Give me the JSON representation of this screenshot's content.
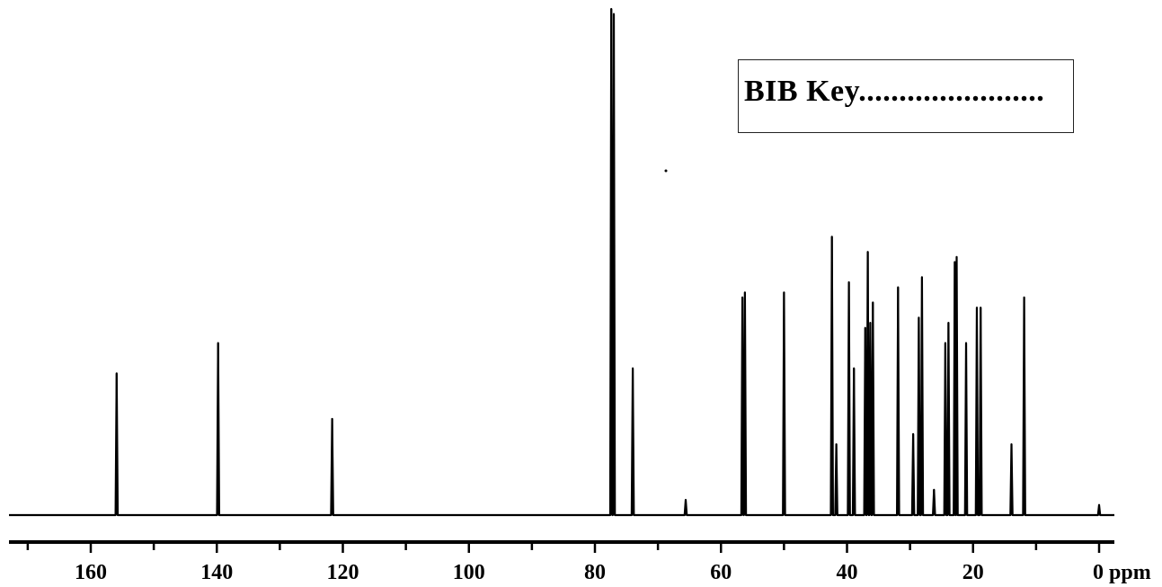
{
  "chart_data": {
    "type": "line",
    "title": "",
    "xlabel": "",
    "ylabel": "",
    "x_unit_label": "ppm",
    "xlim": [
      170,
      -5
    ],
    "x_reversed": true,
    "grid": false,
    "tick_values": [
      160,
      140,
      120,
      100,
      80,
      60,
      40,
      20,
      0
    ],
    "tick_labels": [
      "160",
      "140",
      "120",
      "100",
      "80",
      "60",
      "40",
      "20",
      "0 ppm"
    ],
    "minor_tick_step": 10,
    "legend": {
      "text": "BIB Key.......................",
      "placement": "top-right"
    },
    "series": [
      {
        "peaks": [
          {
            "ppm": 155.9,
            "intensity": 0.28
          },
          {
            "ppm": 139.8,
            "intensity": 0.34
          },
          {
            "ppm": 121.7,
            "intensity": 0.19
          },
          {
            "ppm": 77.4,
            "intensity": 1.0
          },
          {
            "ppm": 77.0,
            "intensity": 0.99
          },
          {
            "ppm": 74.0,
            "intensity": 0.29
          },
          {
            "ppm": 65.6,
            "intensity": 0.03
          },
          {
            "ppm": 56.6,
            "intensity": 0.43
          },
          {
            "ppm": 56.2,
            "intensity": 0.44
          },
          {
            "ppm": 50.0,
            "intensity": 0.44
          },
          {
            "ppm": 42.4,
            "intensity": 0.55
          },
          {
            "ppm": 41.7,
            "intensity": 0.14
          },
          {
            "ppm": 39.7,
            "intensity": 0.46
          },
          {
            "ppm": 38.9,
            "intensity": 0.29
          },
          {
            "ppm": 37.1,
            "intensity": 0.37
          },
          {
            "ppm": 36.7,
            "intensity": 0.52
          },
          {
            "ppm": 36.3,
            "intensity": 0.38
          },
          {
            "ppm": 35.9,
            "intensity": 0.42
          },
          {
            "ppm": 31.9,
            "intensity": 0.45
          },
          {
            "ppm": 29.5,
            "intensity": 0.16
          },
          {
            "ppm": 28.6,
            "intensity": 0.39
          },
          {
            "ppm": 28.1,
            "intensity": 0.47
          },
          {
            "ppm": 26.2,
            "intensity": 0.05
          },
          {
            "ppm": 24.4,
            "intensity": 0.34
          },
          {
            "ppm": 23.9,
            "intensity": 0.38
          },
          {
            "ppm": 22.9,
            "intensity": 0.5
          },
          {
            "ppm": 22.6,
            "intensity": 0.51
          },
          {
            "ppm": 21.1,
            "intensity": 0.34
          },
          {
            "ppm": 19.4,
            "intensity": 0.41
          },
          {
            "ppm": 18.8,
            "intensity": 0.41
          },
          {
            "ppm": 13.9,
            "intensity": 0.14
          },
          {
            "ppm": 11.9,
            "intensity": 0.43
          },
          {
            "ppm": 0.0,
            "intensity": 0.02
          }
        ]
      }
    ]
  },
  "colors": {
    "trace": "#000000",
    "axis": "#000000",
    "background": "#ffffff"
  }
}
